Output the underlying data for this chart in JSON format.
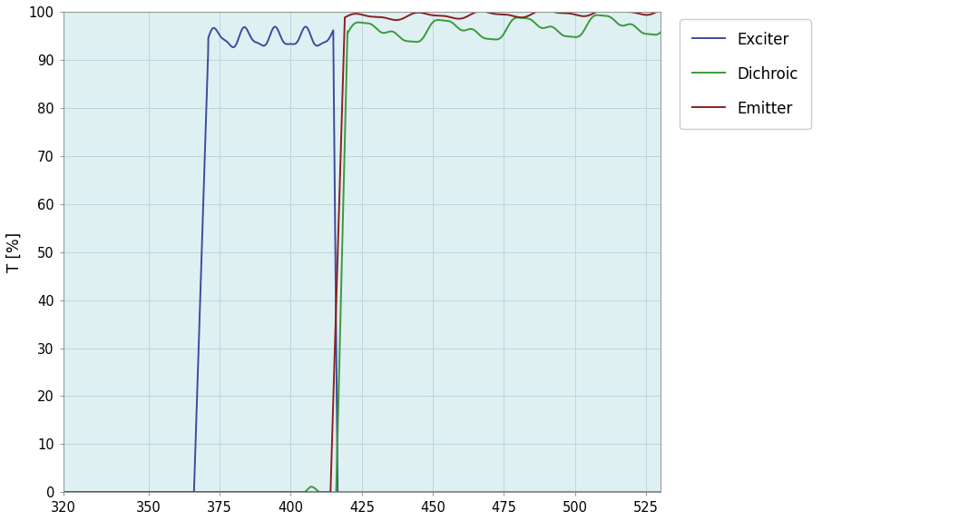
{
  "xlim": [
    320,
    530
  ],
  "ylim": [
    0,
    100
  ],
  "xticks": [
    320,
    350,
    375,
    400,
    425,
    450,
    475,
    500,
    525
  ],
  "yticks": [
    0,
    10,
    20,
    30,
    40,
    50,
    60,
    70,
    80,
    90,
    100
  ],
  "ylabel": "T [%]",
  "fig_bg_color": "#ffffff",
  "plot_bg_color": "#dff0f3",
  "grid_color": "#b8d8dc",
  "exciter_color": "#3b4c9f",
  "dichroic_color": "#3a9a3a",
  "emitter_color": "#8b2020",
  "legend_labels": [
    "Exciter",
    "Dichroic",
    "Emitter"
  ],
  "line_width": 1.4,
  "legend_fontsize": 12
}
